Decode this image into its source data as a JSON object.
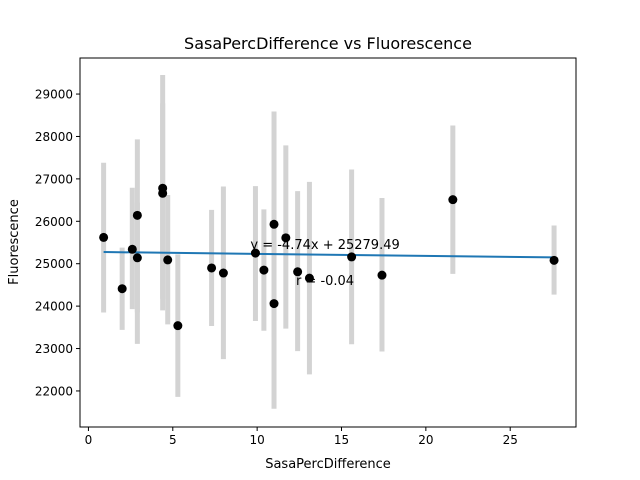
{
  "chart_data": {
    "type": "scatter",
    "title": "SasaPercDifference vs Fluorescence",
    "xlabel": "SasaPercDifference",
    "ylabel": "Fluorescence",
    "xlim": [
      -0.5,
      28.9
    ],
    "ylim": [
      21150,
      29850
    ],
    "xticks": [
      0,
      5,
      10,
      15,
      20,
      25
    ],
    "xtick_labels": [
      "0",
      "5",
      "10",
      "15",
      "20",
      "25"
    ],
    "yticks": [
      22000,
      23000,
      24000,
      25000,
      26000,
      27000,
      28000,
      29000
    ],
    "ytick_labels": [
      "22000",
      "23000",
      "24000",
      "25000",
      "26000",
      "27000",
      "28000",
      "29000"
    ],
    "grid": false,
    "points": [
      {
        "x": 0.9,
        "y": 25620,
        "ylow": 23850,
        "yhigh": 27380
      },
      {
        "x": 2.0,
        "y": 24410,
        "ylow": 23440,
        "yhigh": 25380
      },
      {
        "x": 2.6,
        "y": 25340,
        "ylow": 23930,
        "yhigh": 26790
      },
      {
        "x": 2.9,
        "y": 26140,
        "ylow": 23110,
        "yhigh": 27930
      },
      {
        "x": 2.9,
        "y": 25140,
        "ylow": 23850,
        "yhigh": 26440
      },
      {
        "x": 4.4,
        "y": 26780,
        "ylow": 23900,
        "yhigh": 29450
      },
      {
        "x": 4.4,
        "y": 26660,
        "ylow": 24170,
        "yhigh": 28780
      },
      {
        "x": 4.7,
        "y": 25090,
        "ylow": 23570,
        "yhigh": 26620
      },
      {
        "x": 5.3,
        "y": 23540,
        "ylow": 21860,
        "yhigh": 25220
      },
      {
        "x": 7.3,
        "y": 24900,
        "ylow": 23530,
        "yhigh": 26270
      },
      {
        "x": 8.0,
        "y": 24780,
        "ylow": 22750,
        "yhigh": 26820
      },
      {
        "x": 9.9,
        "y": 25250,
        "ylow": 23650,
        "yhigh": 26830
      },
      {
        "x": 10.4,
        "y": 24850,
        "ylow": 23420,
        "yhigh": 26280
      },
      {
        "x": 11.0,
        "y": 24060,
        "ylow": 21580,
        "yhigh": 26530
      },
      {
        "x": 11.0,
        "y": 25930,
        "ylow": 23280,
        "yhigh": 28590
      },
      {
        "x": 11.7,
        "y": 25610,
        "ylow": 23470,
        "yhigh": 27790
      },
      {
        "x": 12.4,
        "y": 24810,
        "ylow": 22940,
        "yhigh": 26710
      },
      {
        "x": 13.1,
        "y": 24660,
        "ylow": 22390,
        "yhigh": 26930
      },
      {
        "x": 15.6,
        "y": 25160,
        "ylow": 23100,
        "yhigh": 27220
      },
      {
        "x": 17.4,
        "y": 24730,
        "ylow": 22930,
        "yhigh": 26550
      },
      {
        "x": 21.6,
        "y": 26510,
        "ylow": 24760,
        "yhigh": 28260
      },
      {
        "x": 27.6,
        "y": 25080,
        "ylow": 24270,
        "yhigh": 25900
      }
    ],
    "fit_line": {
      "slope": -4.74,
      "intercept": 25279.49,
      "x_range": [
        0.9,
        27.6
      ],
      "color": "#1f77b4"
    },
    "annotations": [
      {
        "text": "y = -4.74x + 25279.49",
        "x": 9.6,
        "y": 25350
      },
      {
        "text": "r = -0.04",
        "x": 12.3,
        "y": 24500
      }
    ],
    "colors": {
      "points": "#000000",
      "errorbars": "#d3d3d3",
      "fit": "#1f77b4"
    }
  }
}
